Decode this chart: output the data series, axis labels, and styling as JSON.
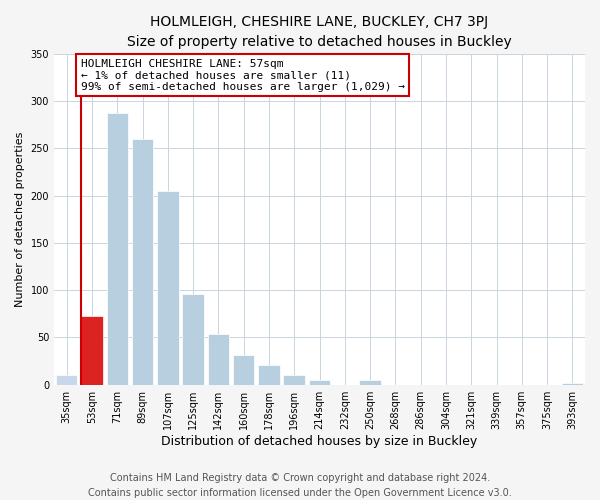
{
  "title": "HOLMLEIGH, CHESHIRE LANE, BUCKLEY, CH7 3PJ",
  "subtitle": "Size of property relative to detached houses in Buckley",
  "xlabel": "Distribution of detached houses by size in Buckley",
  "ylabel": "Number of detached properties",
  "bar_labels": [
    "35sqm",
    "53sqm",
    "71sqm",
    "89sqm",
    "107sqm",
    "125sqm",
    "142sqm",
    "160sqm",
    "178sqm",
    "196sqm",
    "214sqm",
    "232sqm",
    "250sqm",
    "268sqm",
    "286sqm",
    "304sqm",
    "321sqm",
    "339sqm",
    "357sqm",
    "375sqm",
    "393sqm"
  ],
  "bar_values": [
    10,
    73,
    287,
    260,
    205,
    96,
    54,
    31,
    21,
    10,
    5,
    0,
    5,
    0,
    0,
    0,
    0,
    0,
    0,
    0,
    2
  ],
  "bar_colors_light": "#b8cfe0",
  "bar_color_red": "#dd2222",
  "bar_color_first": "#c8d8ea",
  "ylim": [
    0,
    350
  ],
  "annotation_title": "HOLMLEIGH CHESHIRE LANE: 57sqm",
  "annotation_line1": "← 1% of detached houses are smaller (11)",
  "annotation_line2": "99% of semi-detached houses are larger (1,029) →",
  "annotation_box_edge_color": "#cc0000",
  "red_line_bar_index": 1,
  "footer1": "Contains HM Land Registry data © Crown copyright and database right 2024.",
  "footer2": "Contains public sector information licensed under the Open Government Licence v3.0.",
  "bg_color": "#f5f5f5",
  "plot_bg_color": "#ffffff",
  "grid_color": "#c8d4de",
  "title_fontsize": 10,
  "subtitle_fontsize": 9.5,
  "xlabel_fontsize": 9,
  "ylabel_fontsize": 8,
  "tick_fontsize": 7,
  "footer_fontsize": 7,
  "annot_fontsize": 8
}
